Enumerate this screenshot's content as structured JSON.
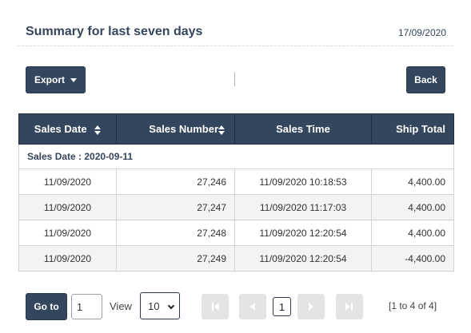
{
  "header": {
    "title": "Summary for last seven days",
    "date": "17/09/2020"
  },
  "toolbar": {
    "export_label": "Export",
    "back_label": "Back"
  },
  "table": {
    "columns": [
      "Sales Date",
      "Sales Number",
      "Sales Time",
      "Ship Total"
    ],
    "group_label": "Sales Date : 2020-09-11",
    "rows": [
      [
        "11/09/2020",
        "27,246",
        "11/09/2020 10:18:53",
        "4,400.00"
      ],
      [
        "11/09/2020",
        "27,247",
        "11/09/2020 11:17:03",
        "4,400.00"
      ],
      [
        "11/09/2020",
        "27,248",
        "11/09/2020 12:20:54",
        "4,400.00"
      ],
      [
        "11/09/2020",
        "27,249",
        "11/09/2020 12:20:54",
        "-4,400.00"
      ]
    ]
  },
  "pagination": {
    "goto_label": "Go to",
    "page_input_value": "1",
    "view_label": "View",
    "page_size": "10",
    "current_page": "1",
    "range_text": "[1 to 4 of 4]",
    "icons": {
      "first": "first-page-icon",
      "prev": "prev-page-icon",
      "next": "next-page-icon",
      "last": "last-page-icon"
    }
  },
  "colors": {
    "accent": "#34465e",
    "disabled": "#e4e4e4"
  }
}
